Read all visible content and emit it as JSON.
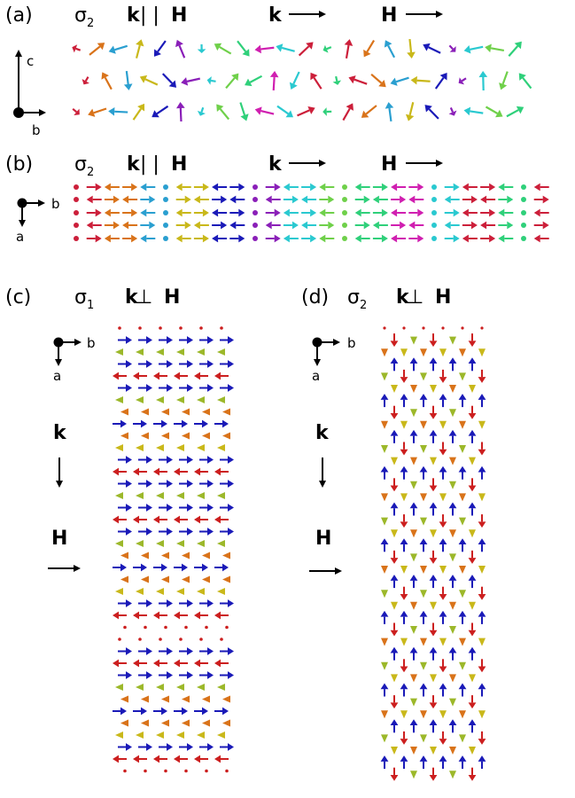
{
  "panel_a": {
    "letter": "(a)",
    "sigma": "σ",
    "sub": "2",
    "k_label": "k",
    "par": " | | ",
    "h_label": "H",
    "k2": "k",
    "h2": "H",
    "axis_up": "c",
    "axis_right": "b"
  },
  "panel_b": {
    "letter": "(b)",
    "sigma": "σ",
    "sub": "2",
    "k_label": "k",
    "par": " | | ",
    "h_label": "H",
    "k2": "k",
    "h2": "H",
    "axis_right": "b",
    "axis_down": "a"
  },
  "panel_c": {
    "letter": "(c)",
    "sigma": "σ",
    "sub": "1",
    "k_label": "k",
    "perp": " ⊥ ",
    "h_label": "H",
    "axis_right": "b",
    "axis_down": "a",
    "k_side": "k",
    "h_side": "H"
  },
  "panel_d": {
    "letter": "(d)",
    "sigma": "σ",
    "sub": "2",
    "k_label": "k",
    "perp": " ⊥ ",
    "h_label": "H",
    "axis_right": "b",
    "axis_down": "a",
    "k_side": "k",
    "h_side": "H"
  },
  "colors": {
    "blue": "#1a1ab8",
    "red": "#cc1f1f",
    "orange": "#d9731a",
    "yellow": "#c9b81a",
    "green": "#2fd07a",
    "cyan": "#2ac9d0",
    "purple": "#8a1fb8",
    "magenta": "#d01fb0",
    "olive": "#9cb82a"
  }
}
